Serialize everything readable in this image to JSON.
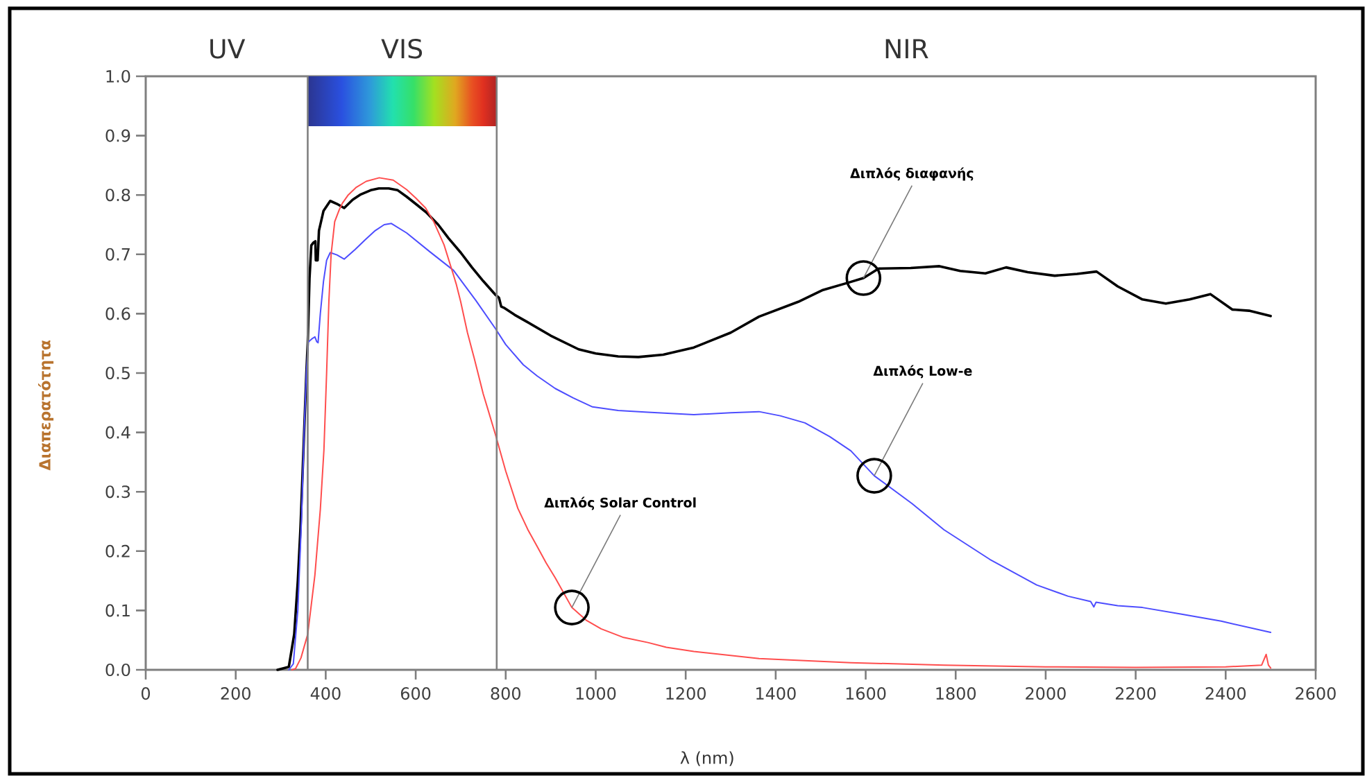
{
  "chart_data": {
    "type": "line",
    "xlabel": "λ (nm)",
    "ylabel": "Διαπερατότητα",
    "xlim": [
      0,
      2600
    ],
    "ylim": [
      0,
      1
    ],
    "xticks": [
      0,
      200,
      400,
      600,
      800,
      1000,
      1200,
      1400,
      1600,
      1800,
      2000,
      2200,
      2400,
      2600
    ],
    "yticks": [
      {
        "value": 0,
        "label": "0.0"
      },
      0.1,
      0.2,
      0.3,
      0.4,
      0.5,
      0.6,
      0.7,
      0.8,
      0.9,
      {
        "value": 1,
        "label": "1.0"
      }
    ],
    "bands": [
      {
        "axis": "x",
        "from": 360,
        "to": 780,
        "label": "VIS"
      }
    ],
    "ref_lines": [
      {
        "axis": "x",
        "value": 360,
        "color": "#808080"
      },
      {
        "axis": "x",
        "value": 780,
        "color": "#808080"
      }
    ],
    "series": [
      {
        "color": "#000000",
        "x": [
          293,
          318,
          330,
          338,
          344,
          352,
          357,
          360,
          364,
          368,
          373,
          377,
          378,
          382,
          385,
          395,
          410,
          425,
          441,
          460,
          478,
          500,
          518,
          540,
          560,
          580,
          600,
          623,
          650,
          673,
          700,
          725,
          750,
          777,
          785,
          790,
          796,
          820,
          848,
          900,
          962,
          1000,
          1050,
          1095,
          1150,
          1218,
          1300,
          1363,
          1450,
          1505,
          1560,
          1595,
          1629,
          1700,
          1764,
          1810,
          1866,
          1912,
          1960,
          2020,
          2070,
          2113,
          2160,
          2215,
          2267,
          2320,
          2366,
          2415,
          2452,
          2500
        ],
        "values": [
          0,
          0.005,
          0.06,
          0.15,
          0.24,
          0.4,
          0.5,
          0.55,
          0.66,
          0.715,
          0.72,
          0.722,
          0.69,
          0.69,
          0.74,
          0.773,
          0.79,
          0.785,
          0.778,
          0.792,
          0.801,
          0.808,
          0.811,
          0.811,
          0.808,
          0.797,
          0.785,
          0.771,
          0.75,
          0.727,
          0.703,
          0.678,
          0.655,
          0.632,
          0.627,
          0.612,
          0.61,
          0.598,
          0.586,
          0.563,
          0.54,
          0.533,
          0.528,
          0.527,
          0.531,
          0.543,
          0.568,
          0.595,
          0.62,
          0.64,
          0.652,
          0.66,
          0.676,
          0.677,
          0.68,
          0.672,
          0.668,
          0.678,
          0.67,
          0.664,
          0.667,
          0.671,
          0.646,
          0.624,
          0.617,
          0.624,
          0.633,
          0.607,
          0.605,
          0.596
        ]
      },
      {
        "color": "#4d4dff",
        "x": [
          318,
          328,
          338,
          346,
          352,
          357,
          361,
          370,
          376,
          380,
          383,
          388,
          395,
          402,
          410,
          425,
          441,
          465,
          487,
          510,
          530,
          546,
          580,
          632,
          684,
          734,
          777,
          800,
          839,
          870,
          910,
          950,
          993,
          1050,
          1116,
          1218,
          1300,
          1363,
          1410,
          1465,
          1520,
          1567,
          1619,
          1703,
          1774,
          1876,
          1980,
          2050,
          2100,
          2107,
          2112,
          2160,
          2215,
          2300,
          2390,
          2500
        ],
        "values": [
          0,
          0.01,
          0.1,
          0.25,
          0.4,
          0.5,
          0.552,
          0.558,
          0.561,
          0.553,
          0.551,
          0.6,
          0.654,
          0.69,
          0.703,
          0.699,
          0.692,
          0.708,
          0.724,
          0.74,
          0.75,
          0.752,
          0.736,
          0.704,
          0.673,
          0.622,
          0.575,
          0.548,
          0.514,
          0.495,
          0.474,
          0.458,
          0.443,
          0.437,
          0.434,
          0.43,
          0.433,
          0.435,
          0.428,
          0.416,
          0.393,
          0.369,
          0.327,
          0.28,
          0.236,
          0.186,
          0.143,
          0.124,
          0.115,
          0.106,
          0.114,
          0.108,
          0.105,
          0.094,
          0.082,
          0.063
        ]
      },
      {
        "color": "#ff4d4d",
        "x": [
          325,
          333,
          345,
          360,
          376,
          388,
          396,
          402,
          407,
          412,
          420,
          430,
          437,
          450,
          468,
          490,
          519,
          550,
          580,
          600,
          622,
          640,
          663,
          684,
          690,
          700,
          715,
          730,
          750,
          760,
          777,
          800,
          827,
          850,
          869,
          890,
          910,
          947,
          980,
          1012,
          1060,
          1116,
          1157,
          1218,
          1363,
          1567,
          1774,
          2000,
          2200,
          2400,
          2480,
          2490,
          2495,
          2500
        ],
        "values": [
          0,
          0.002,
          0.02,
          0.06,
          0.16,
          0.27,
          0.37,
          0.5,
          0.62,
          0.7,
          0.755,
          0.775,
          0.786,
          0.8,
          0.813,
          0.823,
          0.829,
          0.825,
          0.809,
          0.795,
          0.778,
          0.755,
          0.716,
          0.665,
          0.65,
          0.62,
          0.568,
          0.525,
          0.465,
          0.44,
          0.397,
          0.335,
          0.272,
          0.235,
          0.209,
          0.18,
          0.155,
          0.105,
          0.083,
          0.069,
          0.055,
          0.046,
          0.038,
          0.031,
          0.019,
          0.012,
          0.008,
          0.005,
          0.004,
          0.005,
          0.008,
          0.026,
          0.008,
          0.003
        ]
      }
    ],
    "annotations": [
      "UV",
      "NIR",
      {
        "text": "Διπλός διαφανής",
        "x": 1595,
        "y": 0.66
      },
      {
        "text": "Διπλός Low-e",
        "x": 1619,
        "y": 0.327
      },
      {
        "text": "Διπλός Solar Control",
        "x": 947,
        "y": 0.105
      }
    ]
  }
}
